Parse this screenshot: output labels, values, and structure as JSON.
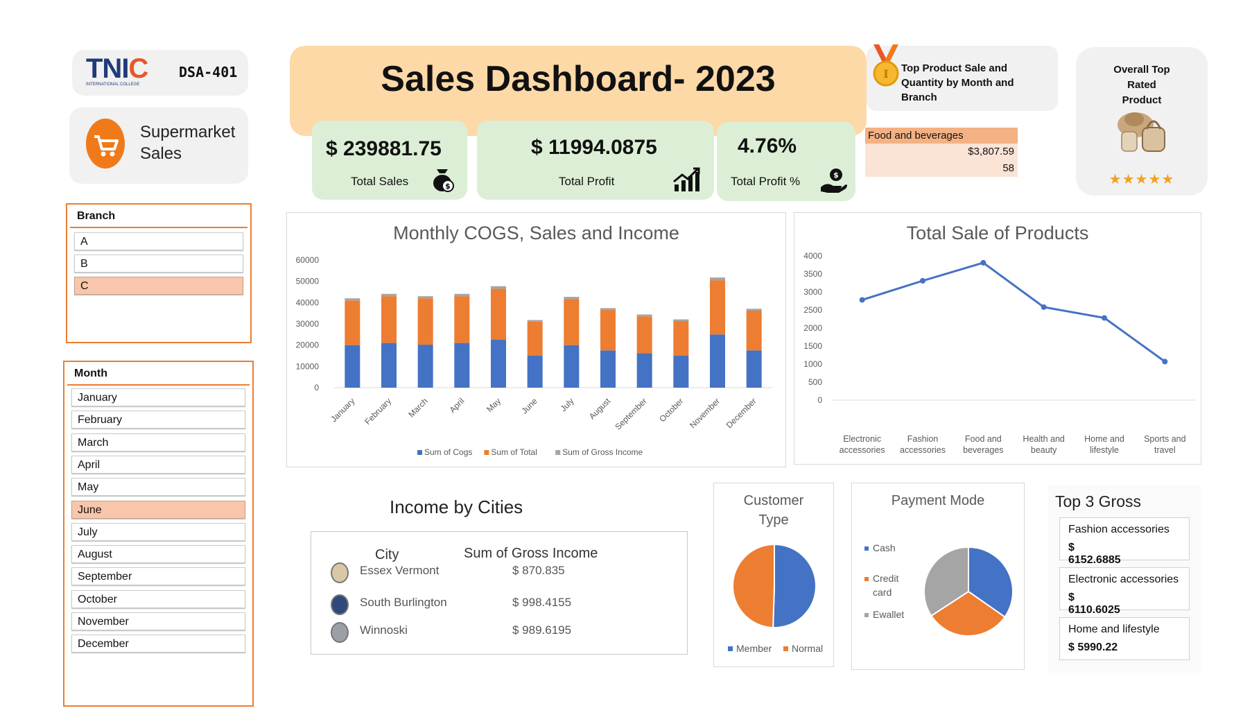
{
  "logo": {
    "brand": "TNIC",
    "sub": "INTERNATIONAL COLLEGE",
    "course": "DSA-401"
  },
  "app": {
    "title_line1": "Supermarket",
    "title_line2": "Sales"
  },
  "header": {
    "title": "Sales Dashboard- 2023"
  },
  "kpis": [
    {
      "value": "$ 239881.75",
      "label": "Total Sales",
      "icon": "money-bag-icon"
    },
    {
      "value": "$ 11994.0875",
      "label": "Total Profit",
      "icon": "growth-chart-icon"
    },
    {
      "value": "4.76%",
      "label": "Total Profit %",
      "icon": "hand-coin-icon"
    }
  ],
  "top_product": {
    "title_line1": "Top Product Sale and",
    "title_line2": "Quantity by Month and",
    "title_line3": "Branch",
    "product": "Food and beverages",
    "sale": "$3,807.59",
    "quantity": "58"
  },
  "top_rated": {
    "line1": "Overall Top",
    "line2": "Rated",
    "line3": "Product",
    "stars": 5
  },
  "branch_slicer": {
    "title": "Branch",
    "items": [
      "A",
      "B",
      "C"
    ],
    "selected": "C"
  },
  "month_slicer": {
    "title": "Month",
    "items": [
      "January",
      "February",
      "March",
      "April",
      "May",
      "June",
      "July",
      "August",
      "September",
      "October",
      "November",
      "December"
    ],
    "selected": "June"
  },
  "income_cities": {
    "title": "Income by Cities",
    "col_city": "City",
    "col_income": "Sum of Gross Income",
    "rows": [
      {
        "city": "Essex Vermont",
        "income": "$ 870.835"
      },
      {
        "city": "South Burlington",
        "income": "$ 998.4155"
      },
      {
        "city": "Winnoski",
        "income": "$ 989.6195"
      }
    ]
  },
  "top3": {
    "title": "Top 3 Gross",
    "items": [
      {
        "name": "Fashion accessories",
        "value_sym": "$",
        "value": "6152.6885"
      },
      {
        "name": "Electronic accessories",
        "value_sym": "$",
        "value": "6110.6025"
      },
      {
        "name": "Home and lifestyle",
        "value_sym": "",
        "value": "$ 5990.22"
      }
    ]
  },
  "colors": {
    "blue": "#4472c4",
    "orange": "#ed7d31",
    "gray": "#a5a5a5",
    "kpi_green": "#dcefd6",
    "header_peach": "#fdd9a7",
    "slicer_orange": "#ed7d31"
  },
  "chart_data": [
    {
      "type": "bar",
      "stacked": true,
      "title": "Monthly COGS, Sales and Income",
      "categories": [
        "January",
        "February",
        "March",
        "April",
        "May",
        "June",
        "July",
        "August",
        "September",
        "October",
        "November",
        "December"
      ],
      "series": [
        {
          "name": "Sum of Cogs",
          "color": "#4472c4",
          "values": [
            20000,
            21000,
            20200,
            21000,
            22500,
            15000,
            20000,
            17500,
            16200,
            15000,
            25000,
            17500
          ]
        },
        {
          "name": "Sum of Total",
          "color": "#ed7d31",
          "values": [
            21000,
            22000,
            21800,
            22000,
            24000,
            16000,
            21700,
            19000,
            17300,
            16300,
            25500,
            18700
          ]
        },
        {
          "name": "Sum of Gross Income",
          "color": "#a5a5a5",
          "values": [
            1000,
            1100,
            1000,
            1100,
            1200,
            800,
            1000,
            900,
            900,
            800,
            1300,
            900
          ]
        }
      ],
      "yticks": [
        0,
        10000,
        20000,
        30000,
        40000,
        50000,
        60000
      ],
      "ylim": [
        0,
        60000
      ],
      "legend": "bottom"
    },
    {
      "type": "line",
      "title": "Total Sale of Products",
      "categories": [
        [
          "Electronic",
          "accessories"
        ],
        [
          "Fashion",
          "accessories"
        ],
        [
          "Food and",
          "beverages"
        ],
        [
          "Health and",
          "beauty"
        ],
        [
          "Home and",
          "lifestyle"
        ],
        [
          "Sports and",
          "travel"
        ]
      ],
      "values": [
        2780,
        3310,
        3810,
        2580,
        2280,
        1070
      ],
      "yticks": [
        0,
        500,
        1000,
        1500,
        2000,
        2500,
        3000,
        3500,
        4000
      ],
      "ylim": [
        0,
        4000
      ],
      "color": "#4472c4"
    },
    {
      "type": "pie",
      "title_line1": "Customer",
      "title_line2": "Type",
      "labels": [
        "Member",
        "Normal"
      ],
      "values": [
        50.5,
        49.5
      ],
      "colors": [
        "#4472c4",
        "#ed7d31"
      ],
      "legend": "bottom"
    },
    {
      "type": "pie",
      "title": "Payment Mode",
      "labels": [
        "Cash",
        "Credit card",
        "Ewallet"
      ],
      "legend_lines": [
        [
          "Cash"
        ],
        [
          "Credit",
          "card"
        ],
        [
          "Ewallet"
        ]
      ],
      "values": [
        34.7,
        31.1,
        34.2
      ],
      "colors": [
        "#4472c4",
        "#ed7d31",
        "#a5a5a5"
      ],
      "legend": "left"
    }
  ]
}
